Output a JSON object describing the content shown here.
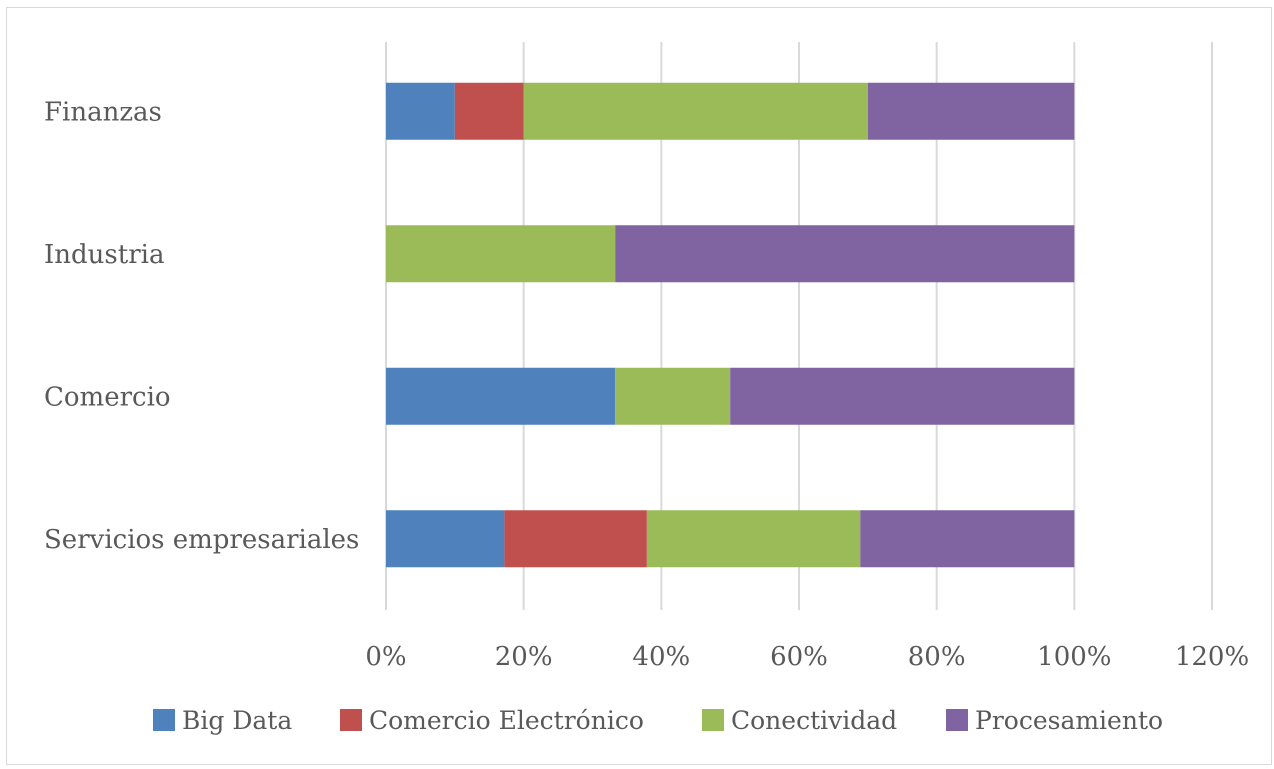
{
  "chart_data": {
    "type": "bar",
    "orientation": "horizontal",
    "stacked": "percent",
    "title": "",
    "xlabel": "",
    "ylabel": "",
    "categories": [
      "Finanzas",
      "Industria",
      "Comercio",
      "Servicios empresariales"
    ],
    "series": [
      {
        "name": "Big Data",
        "color": "#4f81bd",
        "values": [
          10,
          0,
          33.3,
          17.2
        ]
      },
      {
        "name": "Comercio Electrónico",
        "color": "#c0504d",
        "values": [
          10,
          0,
          0,
          20.7
        ]
      },
      {
        "name": "Conectividad",
        "color": "#9bbb59",
        "values": [
          50,
          33.3,
          16.7,
          31.0
        ]
      },
      {
        "name": "Procesamiento",
        "color": "#8064a2",
        "values": [
          30,
          66.7,
          50,
          31.1
        ]
      }
    ],
    "xlim": [
      0,
      120
    ],
    "x_ticks": [
      "0%",
      "20%",
      "40%",
      "60%",
      "80%",
      "100%",
      "120%"
    ],
    "grid": true,
    "legend_position": "bottom"
  }
}
